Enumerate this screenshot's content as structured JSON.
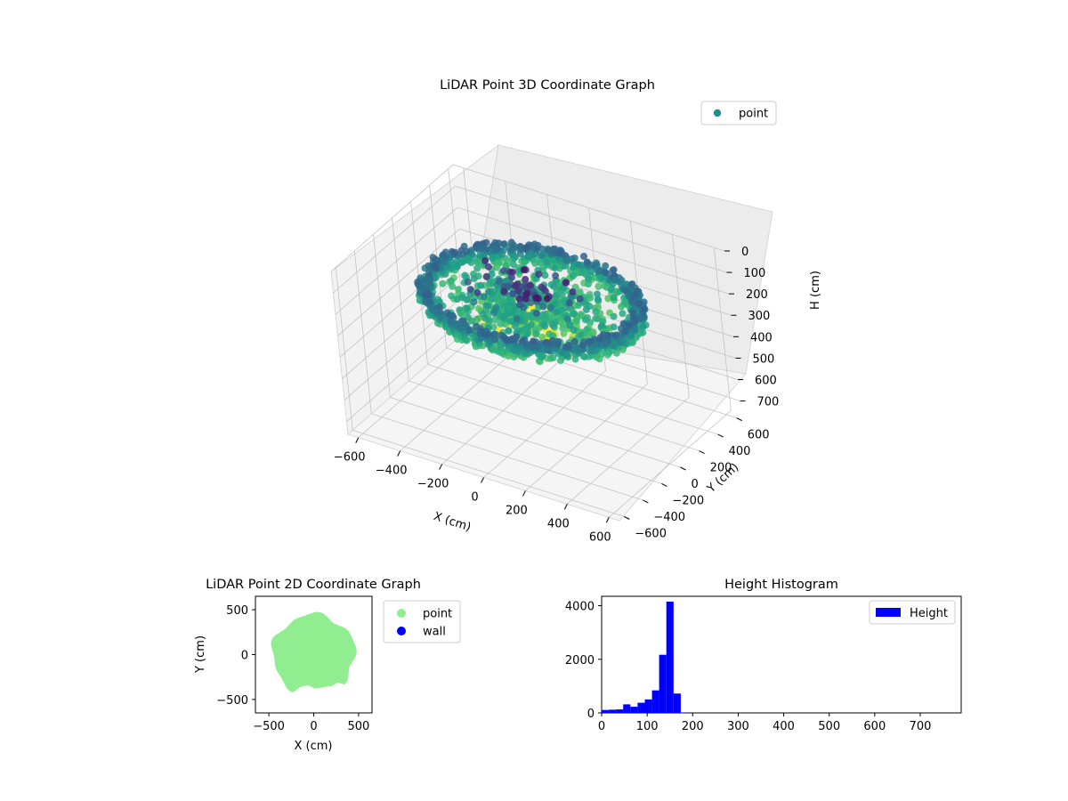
{
  "chart_data": [
    {
      "type": "scatter",
      "projection": "3d",
      "title": "LiDAR Point 3D Coordinate Graph",
      "xlabel": "X (cm)",
      "ylabel": "Y (cm)",
      "zlabel": "H (cm)",
      "xticks": [
        "−600",
        "−400",
        "−200",
        "0",
        "200",
        "400",
        "600"
      ],
      "yticks": [
        "−600",
        "−400",
        "−200",
        "0",
        "200",
        "400",
        "600"
      ],
      "zticks": [
        "0",
        "100",
        "200",
        "300",
        "400",
        "500",
        "600",
        "700"
      ],
      "xlim": [
        -650,
        650
      ],
      "ylim": [
        -650,
        650
      ],
      "zlim": [
        0,
        760
      ],
      "z_inverted": true,
      "colormap": "viridis",
      "grid": true,
      "legend": {
        "placement": "top-right",
        "entries": [
          {
            "label": "point",
            "color": "#21908d"
          }
        ]
      },
      "series": [
        {
          "name": "point",
          "description": "ring of points at radius ~450-500 cm, height ~150-230 cm, with inner cluster at height ~100-330 cm"
        }
      ]
    },
    {
      "type": "scatter",
      "title": "LiDAR Point 2D Coordinate Graph",
      "xlabel": "X (cm)",
      "ylabel": "Y (cm)",
      "xticks": [
        "−500",
        "0",
        "500"
      ],
      "yticks": [
        "500",
        "0",
        "−500"
      ],
      "xlim": [
        -650,
        650
      ],
      "ylim": [
        -650,
        650
      ],
      "legend": {
        "placement": "outside-right",
        "entries": [
          {
            "label": "point",
            "color": "#90ee90"
          },
          {
            "label": "wall",
            "color": "#0000ff"
          }
        ]
      },
      "series": [
        {
          "name": "point",
          "color": "#90ee90"
        },
        {
          "name": "wall",
          "color": "#0000ff"
        }
      ]
    },
    {
      "type": "bar",
      "subtype": "histogram",
      "title": "Height Histogram",
      "xticks": [
        "0",
        "100",
        "200",
        "300",
        "400",
        "500",
        "600",
        "700"
      ],
      "yticks": [
        "0",
        "2000",
        "4000"
      ],
      "xlim": [
        0,
        790
      ],
      "ylim": [
        0,
        4350
      ],
      "bar_color": "#0000ff",
      "bin_width": 15.8,
      "legend": {
        "placement": "top-right",
        "entries": [
          {
            "label": "Height",
            "color": "#0000ff"
          }
        ]
      },
      "series": [
        {
          "name": "Height",
          "bins_start": [
            0,
            15.8,
            31.6,
            47.4,
            63.2,
            79,
            94.8,
            110.6,
            126.4,
            142.2,
            158,
            173.8
          ],
          "values": [
            110,
            120,
            130,
            320,
            230,
            380,
            500,
            840,
            2170,
            4150,
            720,
            10
          ]
        }
      ]
    }
  ]
}
